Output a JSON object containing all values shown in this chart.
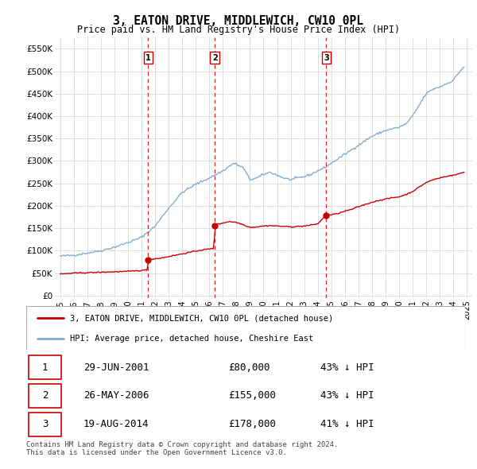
{
  "title": "3, EATON DRIVE, MIDDLEWICH, CW10 0PL",
  "subtitle": "Price paid vs. HM Land Registry's House Price Index (HPI)",
  "ylabel_ticks": [
    0,
    50000,
    100000,
    150000,
    200000,
    250000,
    300000,
    350000,
    400000,
    450000,
    500000,
    550000
  ],
  "ylabel_labels": [
    "£0",
    "£50K",
    "£100K",
    "£150K",
    "£200K",
    "£250K",
    "£300K",
    "£350K",
    "£400K",
    "£450K",
    "£500K",
    "£550K"
  ],
  "xlim": [
    1994.6,
    2025.4
  ],
  "ylim": [
    -5000,
    575000
  ],
  "transactions": [
    {
      "date_num": 2001.49,
      "price": 80000,
      "label": "1"
    },
    {
      "date_num": 2006.4,
      "price": 155000,
      "label": "2"
    },
    {
      "date_num": 2014.63,
      "price": 178000,
      "label": "3"
    }
  ],
  "red_line_color": "#cc0000",
  "blue_line_color": "#88aacc",
  "vline_color": "#cc0000",
  "grid_color": "#dddddd",
  "legend_entry1": "3, EATON DRIVE, MIDDLEWICH, CW10 0PL (detached house)",
  "legend_entry2": "HPI: Average price, detached house, Cheshire East",
  "table_rows": [
    {
      "num": "1",
      "date": "29-JUN-2001",
      "price": "£80,000",
      "hpi": "43% ↓ HPI"
    },
    {
      "num": "2",
      "date": "26-MAY-2006",
      "price": "£155,000",
      "hpi": "43% ↓ HPI"
    },
    {
      "num": "3",
      "date": "19-AUG-2014",
      "price": "£178,000",
      "hpi": "41% ↓ HPI"
    }
  ],
  "footnote": "Contains HM Land Registry data © Crown copyright and database right 2024.\nThis data is licensed under the Open Government Licence v3.0.",
  "hpi_anchors": [
    [
      1995.0,
      88000
    ],
    [
      1996.0,
      90000
    ],
    [
      1997.0,
      95000
    ],
    [
      1998.0,
      100000
    ],
    [
      1999.0,
      108000
    ],
    [
      2000.0,
      118000
    ],
    [
      2001.0,
      130000
    ],
    [
      2002.0,
      155000
    ],
    [
      2003.0,
      195000
    ],
    [
      2004.0,
      230000
    ],
    [
      2005.0,
      248000
    ],
    [
      2006.0,
      262000
    ],
    [
      2007.0,
      278000
    ],
    [
      2007.8,
      295000
    ],
    [
      2008.5,
      285000
    ],
    [
      2009.0,
      258000
    ],
    [
      2009.5,
      262000
    ],
    [
      2010.0,
      270000
    ],
    [
      2010.5,
      275000
    ],
    [
      2011.0,
      268000
    ],
    [
      2011.5,
      262000
    ],
    [
      2012.0,
      258000
    ],
    [
      2012.5,
      262000
    ],
    [
      2013.0,
      265000
    ],
    [
      2013.5,
      270000
    ],
    [
      2014.0,
      278000
    ],
    [
      2014.5,
      285000
    ],
    [
      2015.0,
      295000
    ],
    [
      2016.0,
      315000
    ],
    [
      2017.0,
      335000
    ],
    [
      2018.0,
      355000
    ],
    [
      2019.0,
      368000
    ],
    [
      2020.0,
      375000
    ],
    [
      2020.5,
      382000
    ],
    [
      2021.0,
      400000
    ],
    [
      2021.5,
      425000
    ],
    [
      2022.0,
      450000
    ],
    [
      2022.5,
      460000
    ],
    [
      2023.0,
      465000
    ],
    [
      2023.5,
      472000
    ],
    [
      2024.0,
      480000
    ],
    [
      2024.5,
      500000
    ],
    [
      2024.8,
      510000
    ]
  ],
  "red_anchors": [
    [
      1995.0,
      48000
    ],
    [
      1995.5,
      49000
    ],
    [
      1996.0,
      50000
    ],
    [
      1996.5,
      50500
    ],
    [
      1997.0,
      51000
    ],
    [
      1997.5,
      51500
    ],
    [
      1998.0,
      52000
    ],
    [
      1998.5,
      52500
    ],
    [
      1999.0,
      53000
    ],
    [
      1999.5,
      53500
    ],
    [
      2000.0,
      54000
    ],
    [
      2000.5,
      55000
    ],
    [
      2001.0,
      56000
    ],
    [
      2001.45,
      57000
    ],
    [
      2001.49,
      80000
    ],
    [
      2001.6,
      80500
    ],
    [
      2002.0,
      82000
    ],
    [
      2002.5,
      84000
    ],
    [
      2003.0,
      87000
    ],
    [
      2003.5,
      90000
    ],
    [
      2004.0,
      93000
    ],
    [
      2004.5,
      96000
    ],
    [
      2005.0,
      99000
    ],
    [
      2005.5,
      102000
    ],
    [
      2006.35,
      105000
    ],
    [
      2006.4,
      155000
    ],
    [
      2006.5,
      158000
    ],
    [
      2006.8,
      160000
    ],
    [
      2007.0,
      162000
    ],
    [
      2007.5,
      165000
    ],
    [
      2008.0,
      163000
    ],
    [
      2008.5,
      158000
    ],
    [
      2009.0,
      152000
    ],
    [
      2009.5,
      153000
    ],
    [
      2010.0,
      155000
    ],
    [
      2010.5,
      156000
    ],
    [
      2011.0,
      155000
    ],
    [
      2011.5,
      154000
    ],
    [
      2012.0,
      153000
    ],
    [
      2012.5,
      154000
    ],
    [
      2013.0,
      155000
    ],
    [
      2013.5,
      157000
    ],
    [
      2014.0,
      160000
    ],
    [
      2014.6,
      178000
    ],
    [
      2015.0,
      180000
    ],
    [
      2015.5,
      183000
    ],
    [
      2016.0,
      188000
    ],
    [
      2016.5,
      192000
    ],
    [
      2017.0,
      198000
    ],
    [
      2017.5,
      203000
    ],
    [
      2018.0,
      208000
    ],
    [
      2018.5,
      212000
    ],
    [
      2019.0,
      215000
    ],
    [
      2019.5,
      218000
    ],
    [
      2020.0,
      220000
    ],
    [
      2020.5,
      225000
    ],
    [
      2021.0,
      232000
    ],
    [
      2021.5,
      242000
    ],
    [
      2022.0,
      252000
    ],
    [
      2022.5,
      258000
    ],
    [
      2023.0,
      262000
    ],
    [
      2023.5,
      266000
    ],
    [
      2024.0,
      268000
    ],
    [
      2024.5,
      272000
    ],
    [
      2024.8,
      275000
    ]
  ]
}
